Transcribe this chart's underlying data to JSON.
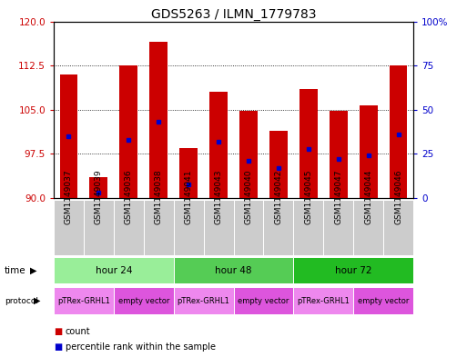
{
  "title": "GDS5263 / ILMN_1779783",
  "samples": [
    "GSM1149037",
    "GSM1149039",
    "GSM1149036",
    "GSM1149038",
    "GSM1149041",
    "GSM1149043",
    "GSM1149040",
    "GSM1149042",
    "GSM1149045",
    "GSM1149047",
    "GSM1149044",
    "GSM1149046"
  ],
  "counts": [
    111.0,
    93.5,
    112.5,
    116.5,
    98.5,
    108.0,
    104.8,
    101.5,
    108.5,
    104.8,
    105.8,
    112.5
  ],
  "percentile_ranks": [
    35,
    3,
    33,
    43,
    8,
    32,
    21,
    17,
    28,
    22,
    24,
    36
  ],
  "ylim_left": [
    90,
    120
  ],
  "ylim_right": [
    0,
    100
  ],
  "yticks_left": [
    90,
    97.5,
    105,
    112.5,
    120
  ],
  "yticks_right": [
    0,
    25,
    50,
    75,
    100
  ],
  "bar_color": "#cc0000",
  "dot_color": "#0000cc",
  "bg_color": "#ffffff",
  "plot_bg": "#ffffff",
  "bar_width": 0.6,
  "time_groups": [
    {
      "label": "hour 24",
      "start": 0,
      "end": 3,
      "color": "#99ee99"
    },
    {
      "label": "hour 48",
      "start": 4,
      "end": 7,
      "color": "#55cc55"
    },
    {
      "label": "hour 72",
      "start": 8,
      "end": 11,
      "color": "#22bb22"
    }
  ],
  "protocol_groups": [
    {
      "label": "pTRex-GRHL1",
      "start": 0,
      "end": 1,
      "color": "#ee88ee"
    },
    {
      "label": "empty vector",
      "start": 2,
      "end": 3,
      "color": "#dd55dd"
    },
    {
      "label": "pTRex-GRHL1",
      "start": 4,
      "end": 5,
      "color": "#ee88ee"
    },
    {
      "label": "empty vector",
      "start": 6,
      "end": 7,
      "color": "#dd55dd"
    },
    {
      "label": "pTRex-GRHL1",
      "start": 8,
      "end": 9,
      "color": "#ee88ee"
    },
    {
      "label": "empty vector",
      "start": 10,
      "end": 11,
      "color": "#dd55dd"
    }
  ],
  "bar_color_red": "#cc0000",
  "dot_color_blue": "#0000cc",
  "left_tick_color": "#cc0000",
  "right_tick_color": "#0000cc",
  "grid_color": "#000000",
  "title_fontsize": 10,
  "tick_fontsize": 7.5,
  "sample_fontsize": 6.5,
  "row_fontsize": 7.5,
  "legend_fontsize": 8
}
